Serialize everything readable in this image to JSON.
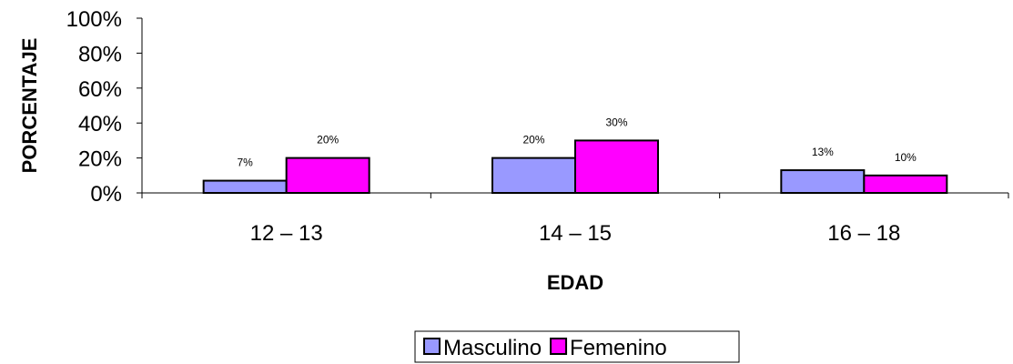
{
  "chart_data": {
    "type": "bar",
    "categories": [
      "12 – 13",
      "14 – 15",
      "16 – 18"
    ],
    "series": [
      {
        "name": "Masculino",
        "values": [
          7,
          20,
          13
        ],
        "labels": [
          "7%",
          "20%",
          "13%"
        ],
        "color": "#9999ff"
      },
      {
        "name": "Femenino",
        "values": [
          20,
          30,
          10
        ],
        "labels": [
          "20%",
          "30%",
          "10%"
        ],
        "color": "#ff00ff"
      }
    ],
    "xlabel": "EDAD",
    "ylabel": "PORCENTAJE",
    "ylim": [
      0,
      100
    ],
    "yticks": [
      0,
      20,
      40,
      60,
      80,
      100
    ],
    "ytick_labels": [
      "0%",
      "20%",
      "40%",
      "60%",
      "80%",
      "100%"
    ],
    "grid": false,
    "legend": "bottom-center"
  }
}
